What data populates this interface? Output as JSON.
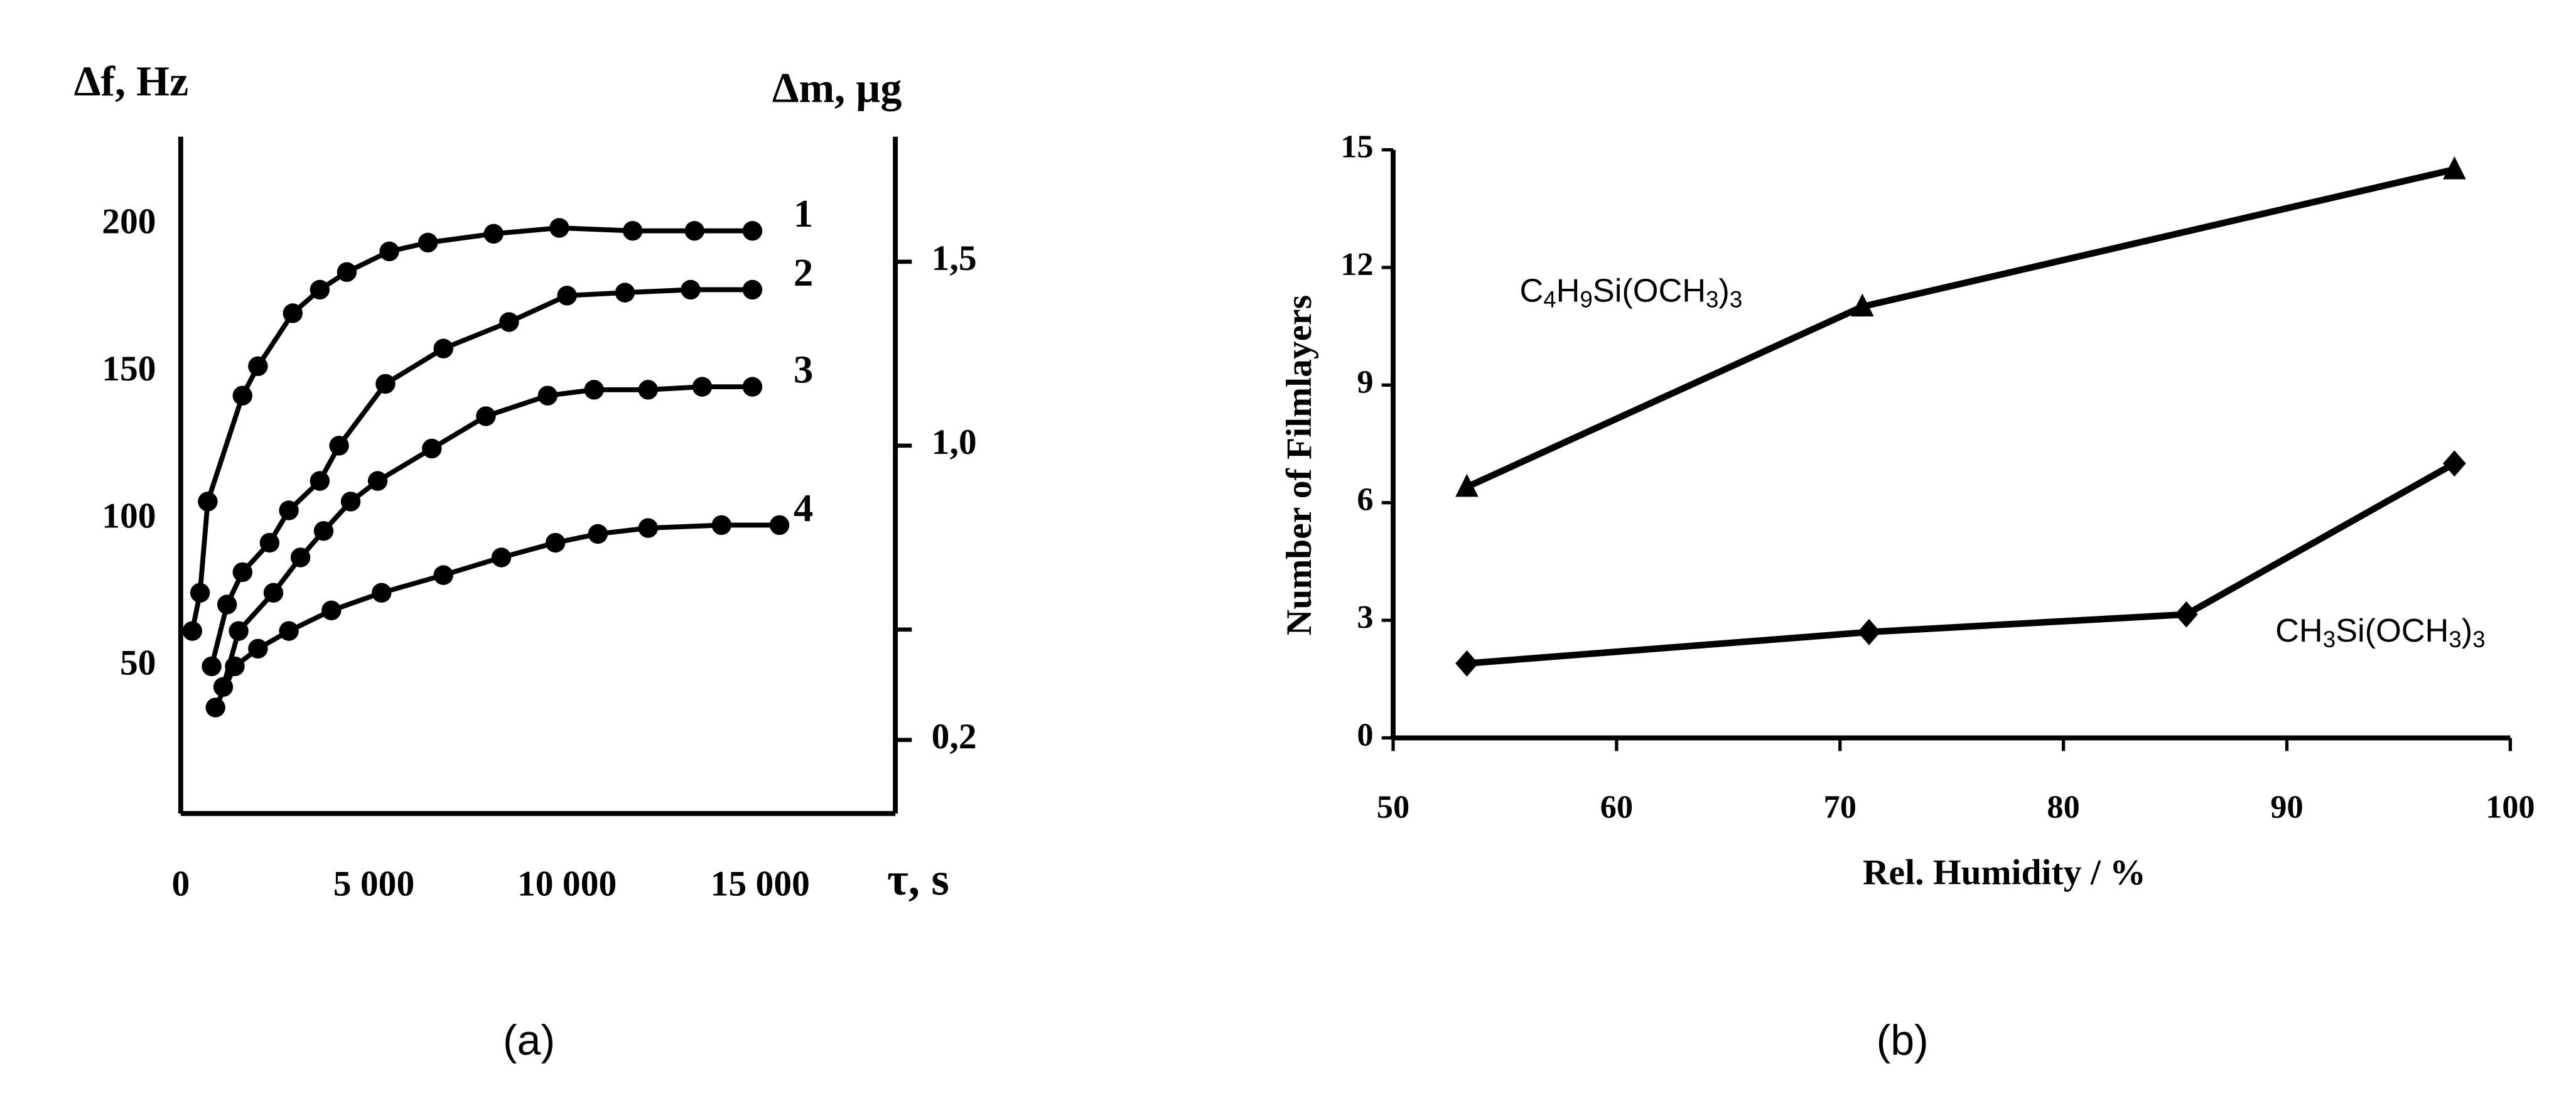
{
  "chart_data": [
    {
      "type": "line",
      "caption": "(a)",
      "y_label": "Δf, Hz",
      "y2_label": "Δm,  µg",
      "x_label": "τ, s",
      "xlim": [
        0,
        18500
      ],
      "xticks": [
        0,
        {
          "value": 5000,
          "label": "5 000"
        },
        {
          "value": 10000,
          "label": "10 000"
        },
        {
          "value": 15000,
          "label": "15 000"
        }
      ],
      "ylim": [
        0,
        230
      ],
      "yticks": [
        50,
        100,
        150,
        200
      ],
      "y2lim": [
        0,
        1.84
      ],
      "y2ticks": [
        {
          "value": 0.2,
          "label": "0,2"
        },
        {
          "value": 0.5,
          "label": null
        },
        {
          "value": 1.0,
          "label": "1,0"
        },
        {
          "value": 1.5,
          "label": "1,5"
        }
      ],
      "marker": "circle",
      "series": [
        {
          "name": "1",
          "color": "#000000",
          "x": [
            300,
            500,
            700,
            1600,
            2000,
            2900,
            3600,
            4300,
            5400,
            6400,
            8100,
            9800,
            11700,
            13300,
            14800
          ],
          "values": [
            62,
            75,
            106,
            142,
            152,
            170,
            178,
            184,
            191,
            194,
            197,
            199,
            198,
            198,
            198
          ]
        },
        {
          "name": "2",
          "color": "#000000",
          "x": [
            800,
            1200,
            1600,
            2300,
            2800,
            3600,
            4100,
            5300,
            6800,
            8500,
            10000,
            11500,
            13200,
            14800
          ],
          "values": [
            50,
            71,
            82,
            92,
            103,
            113,
            125,
            146,
            158,
            167,
            176,
            177,
            178,
            178
          ]
        },
        {
          "name": "3",
          "color": "#000000",
          "x": [
            1100,
            1500,
            2400,
            3100,
            3700,
            4400,
            5100,
            6500,
            7900,
            9500,
            10700,
            12100,
            13500,
            14800
          ],
          "values": [
            43,
            62,
            75,
            87,
            96,
            106,
            113,
            124,
            135,
            142,
            144,
            144,
            145,
            145
          ]
        },
        {
          "name": "4",
          "color": "#000000",
          "x": [
            900,
            1400,
            2000,
            2800,
            3900,
            5200,
            6800,
            8300,
            9700,
            10800,
            12100,
            14000,
            15500
          ],
          "values": [
            36,
            50,
            56,
            62,
            69,
            75,
            81,
            87,
            92,
            95,
            97,
            98,
            98
          ]
        }
      ]
    },
    {
      "type": "line",
      "caption": "(b)",
      "y_label": "Number  of  Filmlayers",
      "x_label": "Rel.  Humidity / %",
      "xlim": [
        50,
        100
      ],
      "xticks": [
        50,
        60,
        70,
        80,
        90,
        100
      ],
      "ylim": [
        0,
        15
      ],
      "yticks": [
        0,
        3,
        6,
        9,
        12,
        15
      ],
      "series": [
        {
          "name": "C4H9Si(OCH3)3",
          "color": "#000000",
          "marker": "triangle",
          "x": [
            53.3,
            71.0,
            97.5
          ],
          "values": [
            6.4,
            11.0,
            14.5
          ]
        },
        {
          "name": "CH3Si(OCH3)3",
          "color": "#000000",
          "marker": "diamond",
          "x": [
            53.3,
            71.3,
            85.5,
            97.5
          ],
          "values": [
            1.9,
            2.7,
            3.15,
            7.0
          ]
        }
      ]
    }
  ]
}
